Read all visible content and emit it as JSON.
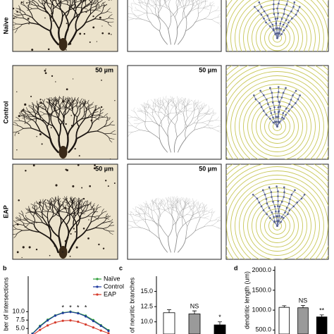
{
  "figure": {
    "rows": [
      {
        "label": "Naïve",
        "scale_labels": []
      },
      {
        "label": "Control",
        "scale_labels": [
          "50 µm",
          "50 µm"
        ]
      },
      {
        "label": "EAP",
        "scale_labels": [
          "50 µm",
          "50 µm"
        ]
      }
    ]
  },
  "chart_data": [
    {
      "type": "line",
      "panel": "b",
      "y_label": "ber of intersections",
      "ylim": [
        4,
        20.5
      ],
      "yticks": [
        {
          "value": 5,
          "label": "5.0"
        },
        {
          "value": 7.5,
          "label": "7.5"
        },
        {
          "value": 10,
          "label": "10.0"
        }
      ],
      "series": [
        {
          "name": "Naïve",
          "color": "#2e9e3a",
          "values": [
            3.5,
            5.8,
            7.6,
            8.9,
            9.7,
            10.0,
            9.6,
            8.8,
            7.5,
            6.0,
            4.5
          ]
        },
        {
          "name": "Control",
          "color": "#1f3a9e",
          "values": [
            3.4,
            5.6,
            7.4,
            8.8,
            9.6,
            9.9,
            9.5,
            8.6,
            7.2,
            5.8,
            4.3
          ]
        },
        {
          "name": "EAP",
          "color": "#d63a2a",
          "values": [
            3.0,
            4.6,
            5.9,
            6.8,
            7.3,
            7.4,
            7.0,
            6.2,
            5.3,
            4.4,
            3.6
          ]
        }
      ],
      "annotations": [
        "*",
        "*",
        "*",
        "*"
      ],
      "legend": "upper right"
    },
    {
      "type": "bar",
      "panel": "c",
      "y_label": "of neuritic branches",
      "ylim": [
        8,
        17.5
      ],
      "yticks": [
        {
          "value": 10,
          "label": "10.0"
        },
        {
          "value": 12.5,
          "label": "12.5"
        },
        {
          "value": 15,
          "label": "15.0"
        }
      ],
      "values": [
        11.5,
        11.3,
        9.5
      ],
      "errors": [
        0.5,
        0.5,
        0.5
      ],
      "colors": [
        "#ffffff",
        "#9a9a9a",
        "#000000"
      ],
      "annotations": [
        null,
        "NS",
        "*"
      ]
    },
    {
      "type": "bar",
      "panel": "d",
      "y_label": "dendritic length (um)",
      "ylim": [
        400,
        2100
      ],
      "yticks": [
        {
          "value": 500,
          "label": "500.0"
        },
        {
          "value": 1000,
          "label": "1000.0"
        },
        {
          "value": 1500,
          "label": "1500.0"
        },
        {
          "value": 2000,
          "label": "2000.0"
        }
      ],
      "values": [
        1070,
        1060,
        830
      ],
      "errors": [
        40,
        60,
        50
      ],
      "colors": [
        "#ffffff",
        "#9a9a9a",
        "#000000"
      ],
      "annotations": [
        null,
        "NS",
        "**"
      ]
    }
  ]
}
